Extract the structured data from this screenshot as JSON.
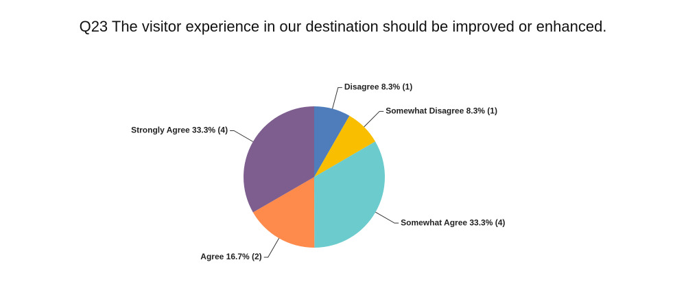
{
  "chart_data": {
    "type": "pie",
    "title": "Q23 The visitor experience in our destination should be improved or enhanced.",
    "values": [
      8.3,
      8.3,
      33.3,
      16.7,
      33.3
    ],
    "value_labels": [
      "Disagree 8.3% (1)",
      "Somewhat Disagree 8.3% (1)",
      "Somewhat Agree 33.3% (4)",
      "Agree 16.7% (2)",
      "Strongly Agree 33.3% (4)"
    ],
    "colors": [
      "#4f7cba",
      "#f9be00",
      "#6bcbcd",
      "#fe8b4c",
      "#7d5e8f"
    ]
  }
}
